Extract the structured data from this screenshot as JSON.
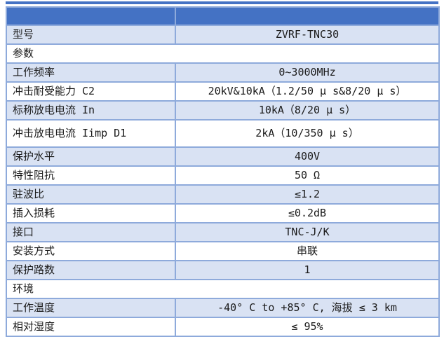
{
  "page": {
    "background_color": "#ffffff"
  },
  "decor": {
    "top_strip_color": "#4472C4"
  },
  "table": {
    "header_color": "#4472C4",
    "border_color": "#8EAADB",
    "row_shade_color": "#D9E2F3",
    "text_color": "#1a1a1a",
    "rows": [
      {
        "label": "型号",
        "value": "ZVRF-TNC30",
        "shaded": true
      },
      {
        "label": "参数",
        "span": true,
        "shaded": false
      },
      {
        "label": "工作频率",
        "value": "0~3000MHz",
        "shaded": true
      },
      {
        "label": "冲击耐受能力 C2",
        "value": "20kV&10kA（1.2/50 μ s&8/20 μ s）",
        "shaded": false
      },
      {
        "label": "标称放电电流 In",
        "value": "10kA（8/20 μ s）",
        "shaded": true
      },
      {
        "label": "冲击放电电流 Iimp D1",
        "value": "2kA（10/350 μ s）",
        "shaded": false,
        "tall": true
      },
      {
        "label": "保护水平",
        "value": "400V",
        "shaded": true
      },
      {
        "label": "特性阻抗",
        "value": "50 Ω",
        "shaded": false
      },
      {
        "label": "驻波比",
        "value": "≤1.2",
        "shaded": true
      },
      {
        "label": "插入损耗",
        "value": "≤0.2dB",
        "shaded": false
      },
      {
        "label": "接口",
        "value": "TNC-J/K",
        "shaded": true
      },
      {
        "label": "安装方式",
        "value": "串联",
        "shaded": false
      },
      {
        "label": "保护路数",
        "value": "1",
        "shaded": true
      },
      {
        "label": "环境",
        "span": true,
        "shaded": false
      },
      {
        "label": "工作温度",
        "value": "-40° C to +85° C, 海拔 ≤ 3 km",
        "shaded": true
      },
      {
        "label": "相对湿度",
        "value": "≤ 95%",
        "shaded": false
      }
    ]
  }
}
